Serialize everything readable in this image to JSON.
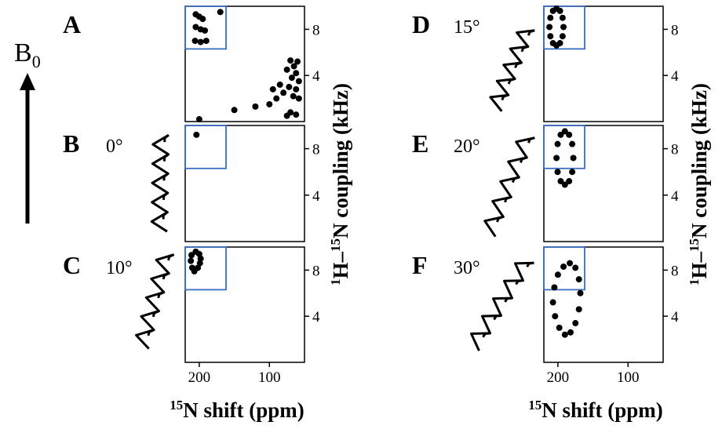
{
  "figure": {
    "field": [
      "B",
      "0"
    ]
  },
  "chart_data": [
    {
      "type": "scatter",
      "label": "A",
      "color": "#000000",
      "x": [
        205,
        200,
        195,
        205,
        198,
        192,
        206,
        198,
        190,
        170,
        70,
        65,
        60,
        75,
        62,
        68,
        58,
        72,
        62,
        66,
        80,
        90,
        58,
        100,
        120,
        70,
        62,
        75,
        200,
        150,
        85,
        95
      ],
      "y": [
        9.3,
        9.1,
        8.9,
        8.2,
        8.0,
        7.9,
        7.0,
        6.9,
        7.0,
        9.5,
        5.3,
        4.8,
        5.2,
        4.5,
        4.2,
        3.8,
        3.5,
        3.0,
        2.8,
        2.2,
        2.5,
        2.0,
        2.0,
        1.5,
        1.3,
        0.8,
        0.6,
        0.5,
        0.2,
        1.0,
        3.2,
        2.8
      ],
      "xlim": [
        220,
        50
      ],
      "ylim": [
        0,
        10
      ],
      "yticks": [
        4,
        8
      ],
      "ylabel": [
        "1",
        "H–",
        "15",
        "N coupling (kHz)"
      ]
    },
    {
      "type": "scatter",
      "label": "B",
      "angle": "0°",
      "color": "#000000",
      "x": [
        204
      ],
      "y": [
        9.2
      ],
      "xlim": [
        220,
        50
      ],
      "ylim": [
        0,
        10
      ],
      "yticks": [
        4,
        8
      ]
    },
    {
      "type": "scatter",
      "label": "C",
      "angle": "10°",
      "color": "#000000",
      "x": [
        205,
        200,
        198,
        199,
        202,
        207,
        210,
        212,
        211
      ],
      "y": [
        9.6,
        9.4,
        9.0,
        8.6,
        8.2,
        7.9,
        8.2,
        8.8,
        9.3
      ],
      "xlim": [
        220,
        50
      ],
      "ylim": [
        0,
        10
      ],
      "xticks": [
        200,
        100
      ],
      "yticks": [
        4,
        8
      ],
      "xlabel": [
        "15",
        "N shift (ppm)"
      ]
    },
    {
      "type": "scatter",
      "label": "D",
      "angle": "15°",
      "color": "#000000",
      "x": [
        212,
        210.7,
        207,
        202,
        197,
        193.3,
        192,
        193.3,
        197,
        202,
        207,
        210.7
      ],
      "y": [
        8.2,
        9.0,
        9.6,
        9.8,
        9.6,
        9.0,
        8.2,
        7.4,
        6.8,
        6.6,
        6.8,
        7.4
      ],
      "xlim": [
        220,
        50
      ],
      "ylim": [
        0,
        10
      ],
      "yticks": [
        4,
        8
      ],
      "ylabel": [
        "1",
        "H–",
        "15",
        "N coupling (kHz)"
      ]
    },
    {
      "type": "scatter",
      "label": "E",
      "angle": "20°",
      "color": "#000000",
      "x": [
        202,
        200.4,
        196,
        190,
        184,
        179.6,
        178,
        179.6,
        184,
        190,
        196,
        200.4
      ],
      "y": [
        7.2,
        8.4,
        9.2,
        9.5,
        9.2,
        8.4,
        7.2,
        6.0,
        5.2,
        4.9,
        5.2,
        6.0
      ],
      "xlim": [
        220,
        50
      ],
      "ylim": [
        0,
        10
      ],
      "yticks": [
        4,
        8
      ]
    },
    {
      "type": "scatter",
      "label": "F",
      "angle": "30°",
      "color": "#000000",
      "x": [
        205,
        200,
        192,
        183,
        175,
        170,
        168,
        170,
        175,
        182,
        190,
        198,
        204,
        207
      ],
      "y": [
        6.5,
        7.6,
        8.3,
        8.6,
        8.2,
        7.2,
        6.0,
        4.6,
        3.4,
        2.6,
        2.4,
        3.0,
        4.0,
        5.2
      ],
      "xlim": [
        220,
        50
      ],
      "ylim": [
        0,
        10
      ],
      "xticks": [
        200,
        100
      ],
      "yticks": [
        4,
        8
      ],
      "xlabel": [
        "15",
        "N shift (ppm)"
      ]
    }
  ]
}
